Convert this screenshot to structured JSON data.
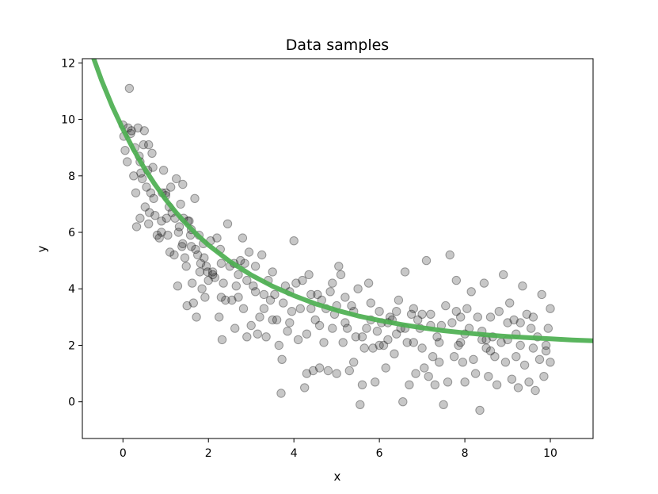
{
  "chart_data": {
    "type": "scatter",
    "title": "Data samples",
    "xlabel": "x",
    "ylabel": "y",
    "xlim": [
      -0.95,
      11.0
    ],
    "ylim": [
      -1.3,
      12.15
    ],
    "xticks": [
      0,
      2,
      4,
      6,
      8,
      10
    ],
    "yticks": [
      0,
      2,
      4,
      6,
      8,
      10,
      12
    ],
    "grid": false,
    "legend": "none",
    "colors": {
      "points": "#000000",
      "fit_line": "#4caf50",
      "axes": "#000000",
      "background": "#ffffff"
    },
    "points": [
      [
        0.0,
        9.8
      ],
      [
        0.02,
        9.4
      ],
      [
        0.05,
        8.9
      ],
      [
        0.1,
        8.5
      ],
      [
        0.12,
        9.7
      ],
      [
        0.15,
        11.1
      ],
      [
        0.2,
        9.6
      ],
      [
        0.25,
        8.0
      ],
      [
        0.28,
        9.0
      ],
      [
        0.3,
        7.4
      ],
      [
        0.32,
        6.2
      ],
      [
        0.35,
        9.7
      ],
      [
        0.38,
        8.7
      ],
      [
        0.4,
        6.5
      ],
      [
        0.42,
        8.1
      ],
      [
        0.45,
        7.9
      ],
      [
        0.48,
        9.1
      ],
      [
        0.5,
        9.6
      ],
      [
        0.52,
        6.9
      ],
      [
        0.55,
        7.6
      ],
      [
        0.58,
        8.2
      ],
      [
        0.6,
        6.3
      ],
      [
        0.62,
        6.7
      ],
      [
        0.65,
        7.4
      ],
      [
        0.68,
        8.8
      ],
      [
        0.7,
        8.3
      ],
      [
        0.72,
        7.2
      ],
      [
        0.75,
        6.6
      ],
      [
        0.8,
        5.9
      ],
      [
        0.85,
        5.8
      ],
      [
        0.9,
        6.4
      ],
      [
        0.92,
        7.4
      ],
      [
        0.95,
        8.2
      ],
      [
        1.0,
        7.3
      ],
      [
        1.02,
        6.5
      ],
      [
        1.05,
        5.9
      ],
      [
        1.08,
        6.9
      ],
      [
        1.1,
        5.3
      ],
      [
        1.12,
        7.6
      ],
      [
        1.15,
        6.7
      ],
      [
        1.2,
        5.2
      ],
      [
        1.22,
        6.5
      ],
      [
        1.25,
        7.9
      ],
      [
        1.28,
        4.1
      ],
      [
        1.3,
        6.0
      ],
      [
        1.32,
        6.2
      ],
      [
        1.35,
        7.0
      ],
      [
        1.38,
        5.5
      ],
      [
        1.4,
        7.7
      ],
      [
        1.42,
        6.5
      ],
      [
        1.45,
        5.1
      ],
      [
        1.48,
        4.8
      ],
      [
        1.5,
        3.4
      ],
      [
        1.52,
        6.4
      ],
      [
        1.55,
        6.4
      ],
      [
        1.58,
        5.9
      ],
      [
        1.6,
        5.5
      ],
      [
        1.62,
        4.2
      ],
      [
        1.65,
        3.5
      ],
      [
        1.68,
        7.2
      ],
      [
        1.7,
        5.4
      ],
      [
        1.72,
        3.0
      ],
      [
        1.75,
        5.2
      ],
      [
        1.78,
        5.9
      ],
      [
        1.8,
        4.6
      ],
      [
        1.82,
        4.9
      ],
      [
        1.85,
        4.0
      ],
      [
        1.88,
        5.6
      ],
      [
        1.9,
        5.1
      ],
      [
        1.92,
        3.7
      ],
      [
        1.95,
        4.8
      ],
      [
        1.98,
        4.6
      ],
      [
        2.0,
        4.3
      ],
      [
        2.05,
        5.7
      ],
      [
        2.1,
        4.5
      ],
      [
        2.15,
        4.4
      ],
      [
        2.2,
        5.8
      ],
      [
        2.25,
        3.0
      ],
      [
        2.28,
        5.4
      ],
      [
        2.3,
        3.7
      ],
      [
        2.32,
        2.2
      ],
      [
        2.35,
        4.2
      ],
      [
        2.4,
        3.6
      ],
      [
        2.45,
        6.3
      ],
      [
        2.5,
        4.8
      ],
      [
        2.55,
        3.6
      ],
      [
        2.6,
        4.9
      ],
      [
        2.62,
        2.6
      ],
      [
        2.65,
        4.1
      ],
      [
        2.7,
        4.5
      ],
      [
        2.75,
        5.0
      ],
      [
        2.8,
        5.8
      ],
      [
        2.82,
        3.3
      ],
      [
        2.85,
        4.9
      ],
      [
        2.9,
        2.3
      ],
      [
        2.95,
        5.3
      ],
      [
        3.0,
        2.7
      ],
      [
        3.05,
        4.1
      ],
      [
        3.1,
        3.9
      ],
      [
        3.15,
        2.4
      ],
      [
        3.2,
        3.0
      ],
      [
        3.25,
        5.2
      ],
      [
        3.3,
        3.3
      ],
      [
        3.35,
        2.3
      ],
      [
        3.4,
        4.3
      ],
      [
        3.45,
        3.6
      ],
      [
        3.5,
        4.6
      ],
      [
        3.55,
        3.8
      ],
      [
        3.6,
        2.9
      ],
      [
        3.65,
        2.0
      ],
      [
        3.7,
        0.3
      ],
      [
        3.72,
        1.5
      ],
      [
        3.75,
        3.5
      ],
      [
        3.8,
        4.1
      ],
      [
        3.85,
        2.5
      ],
      [
        3.9,
        3.9
      ],
      [
        3.95,
        3.2
      ],
      [
        4.0,
        5.7
      ],
      [
        4.05,
        4.2
      ],
      [
        4.1,
        2.2
      ],
      [
        4.15,
        3.3
      ],
      [
        4.2,
        4.3
      ],
      [
        4.25,
        0.5
      ],
      [
        4.3,
        1.0
      ],
      [
        4.35,
        4.5
      ],
      [
        4.4,
        3.3
      ],
      [
        4.45,
        1.1
      ],
      [
        4.5,
        2.9
      ],
      [
        4.55,
        3.8
      ],
      [
        4.6,
        1.2
      ],
      [
        4.65,
        3.6
      ],
      [
        4.7,
        2.1
      ],
      [
        4.75,
        3.3
      ],
      [
        4.8,
        1.1
      ],
      [
        4.85,
        3.9
      ],
      [
        4.9,
        4.2
      ],
      [
        4.95,
        3.1
      ],
      [
        5.0,
        1.0
      ],
      [
        5.05,
        4.8
      ],
      [
        5.1,
        4.5
      ],
      [
        5.15,
        2.1
      ],
      [
        5.2,
        3.7
      ],
      [
        5.25,
        2.6
      ],
      [
        5.3,
        1.1
      ],
      [
        5.35,
        3.4
      ],
      [
        5.4,
        3.2
      ],
      [
        5.45,
        2.3
      ],
      [
        5.5,
        4.0
      ],
      [
        5.55,
        -0.1
      ],
      [
        5.6,
        0.6
      ],
      [
        5.65,
        1.9
      ],
      [
        5.7,
        2.6
      ],
      [
        5.75,
        4.2
      ],
      [
        5.8,
        3.5
      ],
      [
        5.85,
        1.9
      ],
      [
        5.9,
        0.7
      ],
      [
        5.95,
        2.5
      ],
      [
        6.0,
        3.2
      ],
      [
        6.05,
        2.8
      ],
      [
        6.1,
        2.0
      ],
      [
        6.15,
        1.2
      ],
      [
        6.2,
        2.2
      ],
      [
        6.25,
        3.0
      ],
      [
        6.3,
        2.9
      ],
      [
        6.35,
        1.7
      ],
      [
        6.4,
        3.2
      ],
      [
        6.45,
        3.6
      ],
      [
        6.5,
        2.6
      ],
      [
        6.55,
        0.0
      ],
      [
        6.6,
        4.6
      ],
      [
        6.65,
        2.1
      ],
      [
        6.7,
        0.6
      ],
      [
        6.75,
        3.1
      ],
      [
        6.8,
        2.1
      ],
      [
        6.85,
        1.0
      ],
      [
        6.9,
        2.9
      ],
      [
        6.95,
        2.6
      ],
      [
        7.0,
        3.1
      ],
      [
        7.05,
        1.2
      ],
      [
        7.1,
        5.0
      ],
      [
        7.15,
        0.9
      ],
      [
        7.2,
        2.7
      ],
      [
        7.25,
        1.6
      ],
      [
        7.3,
        0.6
      ],
      [
        7.35,
        2.3
      ],
      [
        7.4,
        1.4
      ],
      [
        7.45,
        2.7
      ],
      [
        7.5,
        -0.1
      ],
      [
        7.55,
        3.4
      ],
      [
        7.6,
        0.7
      ],
      [
        7.65,
        5.2
      ],
      [
        7.7,
        2.8
      ],
      [
        7.75,
        1.6
      ],
      [
        7.8,
        4.3
      ],
      [
        7.85,
        2.0
      ],
      [
        7.9,
        3.0
      ],
      [
        7.95,
        1.4
      ],
      [
        8.0,
        0.7
      ],
      [
        8.05,
        3.3
      ],
      [
        8.1,
        2.6
      ],
      [
        8.15,
        3.9
      ],
      [
        8.2,
        1.5
      ],
      [
        8.25,
        1.0
      ],
      [
        8.3,
        3.0
      ],
      [
        8.35,
        -0.3
      ],
      [
        8.4,
        2.2
      ],
      [
        8.45,
        4.2
      ],
      [
        8.5,
        1.9
      ],
      [
        8.55,
        0.9
      ],
      [
        8.6,
        3.0
      ],
      [
        8.65,
        2.3
      ],
      [
        8.7,
        1.6
      ],
      [
        8.75,
        0.6
      ],
      [
        8.8,
        3.2
      ],
      [
        8.85,
        2.1
      ],
      [
        8.9,
        4.5
      ],
      [
        8.95,
        1.4
      ],
      [
        9.0,
        2.2
      ],
      [
        9.05,
        3.5
      ],
      [
        9.1,
        0.8
      ],
      [
        9.15,
        2.9
      ],
      [
        9.2,
        1.6
      ],
      [
        9.25,
        0.5
      ],
      [
        9.3,
        2.8
      ],
      [
        9.35,
        4.1
      ],
      [
        9.4,
        1.3
      ],
      [
        9.45,
        3.1
      ],
      [
        9.5,
        0.7
      ],
      [
        9.55,
        2.6
      ],
      [
        9.6,
        1.9
      ],
      [
        9.65,
        0.4
      ],
      [
        9.7,
        2.3
      ],
      [
        9.75,
        1.5
      ],
      [
        9.8,
        3.8
      ],
      [
        9.85,
        0.9
      ],
      [
        9.9,
        2.0
      ],
      [
        9.95,
        2.6
      ],
      [
        10.0,
        1.4
      ],
      [
        0.18,
        9.5
      ],
      [
        0.6,
        9.1
      ],
      [
        1.0,
        7.4
      ],
      [
        1.6,
        6.1
      ],
      [
        2.3,
        4.9
      ],
      [
        2.9,
        4.3
      ],
      [
        3.3,
        3.8
      ],
      [
        4.6,
        2.7
      ],
      [
        5.0,
        3.4
      ],
      [
        5.6,
        2.3
      ],
      [
        6.2,
        2.8
      ],
      [
        6.8,
        3.3
      ],
      [
        7.4,
        2.1
      ],
      [
        8.0,
        2.4
      ],
      [
        8.6,
        1.8
      ],
      [
        9.2,
        2.4
      ],
      [
        9.9,
        1.8
      ],
      [
        3.1,
        4.8
      ],
      [
        3.5,
        2.9
      ],
      [
        4.3,
        2.4
      ],
      [
        4.9,
        2.6
      ],
      [
        5.4,
        1.4
      ],
      [
        5.8,
        2.9
      ],
      [
        6.4,
        2.4
      ],
      [
        7.0,
        1.9
      ],
      [
        7.8,
        3.2
      ],
      [
        8.4,
        2.5
      ],
      [
        9.0,
        2.8
      ],
      [
        9.6,
        3.0
      ],
      [
        2.1,
        4.6
      ],
      [
        1.4,
        5.6
      ],
      [
        0.9,
        6.0
      ],
      [
        0.4,
        8.5
      ],
      [
        2.7,
        3.7
      ],
      [
        3.9,
        2.8
      ],
      [
        4.4,
        3.8
      ],
      [
        5.2,
        2.8
      ],
      [
        6.0,
        2.0
      ],
      [
        6.6,
        2.6
      ],
      [
        7.2,
        3.1
      ],
      [
        7.9,
        2.1
      ],
      [
        8.5,
        2.2
      ],
      [
        9.3,
        2.0
      ],
      [
        10.0,
        3.3
      ]
    ],
    "fit_curve": [
      [
        -0.7,
        12.22
      ],
      [
        -0.5,
        11.38
      ],
      [
        -0.25,
        10.46
      ],
      [
        0.0,
        9.65
      ],
      [
        0.25,
        8.92
      ],
      [
        0.5,
        8.27
      ],
      [
        0.75,
        7.69
      ],
      [
        1.0,
        7.16
      ],
      [
        1.25,
        6.69
      ],
      [
        1.5,
        6.27
      ],
      [
        1.75,
        5.89
      ],
      [
        2.0,
        5.55
      ],
      [
        2.5,
        4.97
      ],
      [
        3.0,
        4.49
      ],
      [
        3.5,
        4.09
      ],
      [
        4.0,
        3.76
      ],
      [
        4.5,
        3.47
      ],
      [
        5.0,
        3.24
      ],
      [
        5.5,
        3.04
      ],
      [
        6.0,
        2.88
      ],
      [
        6.5,
        2.74
      ],
      [
        7.0,
        2.62
      ],
      [
        7.5,
        2.52
      ],
      [
        8.0,
        2.44
      ],
      [
        8.5,
        2.37
      ],
      [
        9.0,
        2.31
      ],
      [
        9.5,
        2.27
      ],
      [
        10.0,
        2.23
      ],
      [
        10.5,
        2.19
      ],
      [
        11.0,
        2.16
      ]
    ]
  }
}
